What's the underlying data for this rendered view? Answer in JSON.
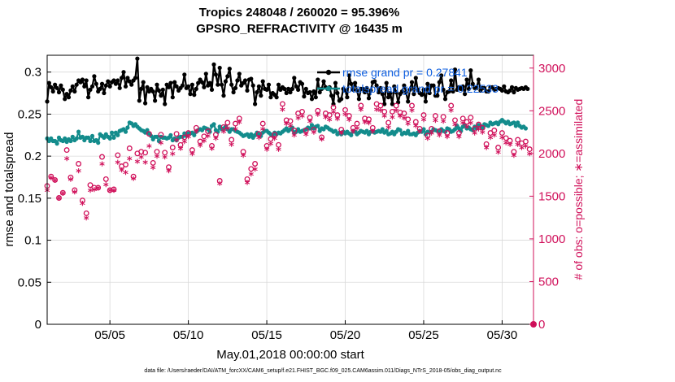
{
  "chart_data": {
    "type": "line",
    "title": "Tropics 248048 / 260020 = 95.396%",
    "subtitle": "GPSRO_REFRACTIVITY @ 16435 m",
    "xlabel": "May.01,2018 00:00:00 start",
    "ylabel": "rmse and totalspread",
    "ylabel_right": "# of obs: o=possible; ∗=assimilated",
    "footer": "data file: /Users/raeder/DAI/ATM_forcXX/CAM6_setup/f.e21.FHIST_BGC.f09_025.CAM6assim.011/Diags_NTrS_2018-05/obs_diag_output.nc",
    "x_ticks": [
      "05/05",
      "05/10",
      "05/15",
      "05/20",
      "05/25",
      "05/30"
    ],
    "x_tick_days": [
      5,
      10,
      15,
      20,
      25,
      30
    ],
    "xlim": [
      1,
      32
    ],
    "ylim": [
      0,
      0.32
    ],
    "y_ticks": [
      "0",
      "0.05",
      "0.1",
      "0.15",
      "0.2",
      "0.25",
      "0.3"
    ],
    "y_tick_values": [
      0,
      0.05,
      0.1,
      0.15,
      0.2,
      0.25,
      0.3
    ],
    "ylim_right": [
      0,
      3150
    ],
    "y_ticks_right": [
      "0",
      "500",
      "1000",
      "1500",
      "2000",
      "2500",
      "3000"
    ],
    "y_tick_values_right": [
      0,
      500,
      1000,
      1500,
      2000,
      2500,
      3000
    ],
    "grid": true,
    "legend": {
      "placement": "top-right",
      "entries": [
        "rmse grand pr = 0.27841",
        "totalspread grand pr = 0.22533"
      ]
    },
    "colors": {
      "rmse": "#000000",
      "spread": "#138c8c",
      "obs": "#d0105a",
      "legend_text": "#1060e0"
    },
    "series": [
      {
        "name": "rmse grand pr = 0.27841",
        "y": [
          0.265,
          0.287,
          0.282,
          0.277,
          0.285,
          0.281,
          0.276,
          0.284,
          0.279,
          0.268,
          0.274,
          0.27,
          0.278,
          0.283,
          0.277,
          0.285,
          0.29,
          0.288,
          0.291,
          0.283,
          0.29,
          0.27,
          0.279,
          0.283,
          0.295,
          0.286,
          0.277,
          0.28,
          0.286,
          0.275,
          0.284,
          0.289,
          0.283,
          0.288,
          0.29,
          0.286,
          0.29,
          0.281,
          0.293,
          0.3,
          0.283,
          0.293,
          0.289,
          0.285,
          0.29,
          0.293,
          0.316,
          0.266,
          0.28,
          0.288,
          0.263,
          0.282,
          0.277,
          0.28,
          0.277,
          0.266,
          0.285,
          0.278,
          0.272,
          0.279,
          0.262,
          0.285,
          0.282,
          0.287,
          0.27,
          0.288,
          0.283,
          0.278,
          0.281,
          0.284,
          0.297,
          0.281,
          0.283,
          0.274,
          0.285,
          0.273,
          0.28,
          0.287,
          0.291,
          0.288,
          0.282,
          0.298,
          0.284,
          0.287,
          0.279,
          0.309,
          0.297,
          0.285,
          0.305,
          0.285,
          0.272,
          0.289,
          0.295,
          0.304,
          0.285,
          0.276,
          0.281,
          0.29,
          0.298,
          0.284,
          0.287,
          0.29,
          0.278,
          0.291,
          0.292,
          0.284,
          0.262,
          0.276,
          0.283,
          0.272,
          0.289,
          0.28,
          0.279,
          0.285,
          0.27,
          0.275,
          0.273,
          0.27,
          0.285,
          0.279,
          0.282,
          0.28,
          0.275,
          0.28,
          0.276,
          0.28,
          0.293,
          0.283,
          0.279,
          0.288,
          0.286,
          0.271,
          0.28,
          0.275,
          0.276,
          0.268,
          0.277,
          0.27,
          0.291,
          0.276,
          0.28,
          0.289,
          0.282,
          0.28,
          0.282,
          0.272,
          0.262,
          0.287,
          0.275,
          0.266,
          0.268,
          0.28,
          0.278,
          0.27,
          0.296,
          0.286,
          0.279,
          0.287,
          0.278,
          0.268,
          0.28,
          0.28,
          0.276,
          0.281,
          0.269,
          0.278,
          0.288,
          0.289,
          0.284,
          0.276,
          0.281,
          0.274,
          0.262,
          0.287,
          0.27,
          0.275,
          0.262,
          0.283,
          0.276,
          0.264,
          0.274,
          0.277,
          0.284,
          0.276,
          0.265,
          0.279,
          0.288,
          0.274,
          0.293,
          0.279,
          0.275,
          0.273,
          0.279,
          0.265,
          0.286,
          0.275,
          0.284,
          0.284,
          0.272,
          0.272,
          0.288,
          0.296,
          0.279,
          0.268,
          0.276,
          0.277,
          0.29,
          0.277,
          0.303,
          0.279,
          0.282,
          0.28,
          0.283,
          0.274,
          0.291,
          0.28,
          0.302,
          0.286,
          0.281,
          0.281,
          0.291,
          0.278,
          0.281,
          0.281,
          0.277,
          0.277,
          0.282,
          0.282,
          0.279,
          0.28,
          0.281,
          0.28,
          0.278,
          0.283,
          0.277,
          0.276,
          0.278,
          0.282,
          0.276,
          0.281,
          0.279,
          0.28,
          0.281,
          0.28,
          0.282,
          0.28
        ]
      },
      {
        "name": "totalspread grand pr = 0.22533",
        "y": [
          0.221,
          0.218,
          0.221,
          0.218,
          0.218,
          0.215,
          0.222,
          0.219,
          0.218,
          0.221,
          0.217,
          0.22,
          0.218,
          0.223,
          0.219,
          0.221,
          0.229,
          0.222,
          0.223,
          0.219,
          0.222,
          0.222,
          0.218,
          0.224,
          0.218,
          0.219,
          0.216,
          0.226,
          0.224,
          0.222,
          0.226,
          0.223,
          0.221,
          0.228,
          0.222,
          0.228,
          0.225,
          0.23,
          0.231,
          0.232,
          0.229,
          0.234,
          0.24,
          0.239,
          0.236,
          0.238,
          0.235,
          0.233,
          0.231,
          0.23,
          0.228,
          0.231,
          0.227,
          0.224,
          0.22,
          0.223,
          0.223,
          0.218,
          0.223,
          0.222,
          0.222,
          0.221,
          0.222,
          0.225,
          0.219,
          0.221,
          0.219,
          0.222,
          0.223,
          0.223,
          0.227,
          0.224,
          0.227,
          0.227,
          0.228,
          0.225,
          0.229,
          0.231,
          0.232,
          0.231,
          0.234,
          0.233,
          0.232,
          0.229,
          0.236,
          0.238,
          0.231,
          0.229,
          0.235,
          0.232,
          0.233,
          0.235,
          0.232,
          0.229,
          0.232,
          0.232,
          0.23,
          0.229,
          0.228,
          0.226,
          0.224,
          0.225,
          0.226,
          0.223,
          0.226,
          0.222,
          0.225,
          0.228,
          0.226,
          0.224,
          0.228,
          0.23,
          0.23,
          0.228,
          0.226,
          0.225,
          0.228,
          0.226,
          0.228,
          0.227,
          0.229,
          0.231,
          0.233,
          0.23,
          0.232,
          0.234,
          0.228,
          0.229,
          0.232,
          0.229,
          0.23,
          0.231,
          0.232,
          0.234,
          0.233,
          0.237,
          0.233,
          0.235,
          0.236,
          0.23,
          0.233,
          0.232,
          0.235,
          0.234,
          0.232,
          0.231,
          0.229,
          0.23,
          0.226,
          0.228,
          0.226,
          0.229,
          0.227,
          0.229,
          0.227,
          0.225,
          0.23,
          0.229,
          0.226,
          0.228,
          0.23,
          0.229,
          0.228,
          0.23,
          0.226,
          0.229,
          0.23,
          0.228,
          0.229,
          0.23,
          0.229,
          0.232,
          0.228,
          0.23,
          0.226,
          0.227,
          0.229,
          0.226,
          0.229,
          0.232,
          0.231,
          0.226,
          0.228,
          0.227,
          0.23,
          0.226,
          0.226,
          0.227,
          0.225,
          0.228,
          0.23,
          0.229,
          0.232,
          0.226,
          0.229,
          0.228,
          0.229,
          0.232,
          0.231,
          0.23,
          0.229,
          0.232,
          0.23,
          0.229,
          0.233,
          0.232,
          0.229,
          0.23,
          0.232,
          0.236,
          0.233,
          0.23,
          0.235,
          0.237,
          0.233,
          0.234,
          0.232,
          0.231,
          0.235,
          0.233,
          0.237,
          0.236,
          0.234,
          0.238,
          0.237,
          0.236,
          0.24,
          0.238,
          0.239,
          0.24,
          0.238,
          0.241,
          0.243,
          0.241,
          0.239,
          0.241,
          0.238,
          0.239,
          0.24,
          0.236,
          0.24,
          0.236,
          0.234,
          0.235,
          0.233
        ]
      },
      {
        "name": "possible",
        "y": [
          1620,
          1510,
          1730,
          1840,
          1690,
          1730,
          1480,
          1600,
          1540,
          2010,
          2040,
          1870,
          1720,
          1680,
          1570,
          1790,
          1880,
          1440,
          1450,
          1410,
          1300,
          1860,
          1630,
          1750,
          1600,
          1700,
          1600,
          1650,
          1960,
          1780,
          1700,
          1750,
          1570,
          1850,
          1580,
          1900,
          1980,
          1700,
          1850,
          1750,
          1870,
          2130,
          2060,
          1900,
          1730,
          1760,
          2000,
          1940,
          2020,
          2140,
          2010,
          1780,
          2230,
          2000,
          1890,
          1870,
          2020,
          2130,
          2220,
          1950,
          2010,
          1870,
          1840,
          1970,
          2070,
          2140,
          2230,
          2000,
          2100,
          2150,
          2190,
          2280,
          2240,
          2090,
          2040,
          2110,
          2300,
          2190,
          2140,
          2240,
          2200,
          2010,
          2260,
          2310,
          2090,
          2300,
          2220,
          1600,
          1680,
          2270,
          2310,
          2170,
          2360,
          2180,
          2160,
          2280,
          2350,
          2250,
          2410,
          2430,
          2020,
          2340,
          1700,
          1800,
          1820,
          1870,
          1880,
          1850,
          2230,
          2380,
          2350,
          2260,
          2090,
          2350,
          2170,
          2450,
          2220,
          2520,
          2100,
          2560,
          2580,
          2700,
          2390,
          2480,
          2380,
          2230,
          2270,
          2520,
          2470,
          2450,
          2490,
          2390,
          2270,
          2400,
          2420,
          2300,
          2280,
          2380,
          2500,
          2190,
          2190,
          2200,
          2470,
          2300,
          2450,
          2560,
          2540,
          2410,
          2450,
          2360,
          2280,
          2380,
          2510,
          2490,
          2440,
          2380,
          2300,
          2340,
          2350,
          2450,
          2560,
          2460,
          2410,
          2360,
          2400,
          2280,
          2300,
          2380,
          2580,
          2440,
          2560,
          2480,
          2490,
          2400,
          2360,
          2540,
          2490,
          2340,
          2560,
          2640,
          2480,
          2290,
          2470,
          2500,
          2400,
          2330,
          2560,
          2520,
          2370,
          1810,
          2290,
          2530,
          2450,
          2350,
          2210,
          2310,
          2290,
          2360,
          2440,
          2400,
          2260,
          2210,
          2430,
          2590,
          2240,
          2270,
          2560,
          2400,
          2390,
          2200,
          2240,
          2270,
          2410,
          2280,
          2370,
          2410,
          2420,
          2120,
          2290,
          2300,
          2340,
          2130,
          2300,
          2280,
          2110,
          2350,
          2240,
          2180,
          2270,
          2260,
          2070,
          2140,
          2240,
          2290,
          2180,
          2230,
          2150,
          2050,
          2020,
          2080,
          2160,
          2200,
          2120,
          2050,
          2140,
          2220,
          2050,
          2080
        ]
      },
      {
        "name": "assimilated",
        "y": [
          1550,
          1450,
          1700,
          1780,
          1670,
          1650,
          1460,
          1570,
          1520,
          1900,
          1920,
          1770,
          1680,
          1630,
          1530,
          1720,
          1780,
          1410,
          1400,
          1380,
          1230,
          1740,
          1550,
          1600,
          1560,
          1620,
          1580,
          1590,
          1860,
          1710,
          1620,
          1700,
          1550,
          1820,
          1550,
          1820,
          1880,
          1650,
          1790,
          1700,
          1760,
          1990,
          1920,
          1850,
          1690,
          1720,
          1890,
          1880,
          1940,
          2080,
          1880,
          1730,
          2070,
          1920,
          1820,
          1800,
          1950,
          2050,
          2110,
          1900,
          1940,
          1830,
          1780,
          1900,
          1980,
          2060,
          2140,
          1930,
          2040,
          2080,
          2120,
          2190,
          2180,
          2020,
          1980,
          2050,
          2240,
          2130,
          2080,
          2180,
          2130,
          1960,
          2190,
          2240,
          2040,
          2240,
          2160,
          1550,
          1630,
          2200,
          2240,
          2110,
          2280,
          2110,
          2090,
          2200,
          2270,
          2180,
          2350,
          2370,
          1960,
          2280,
          1640,
          1750,
          1740,
          1790,
          1800,
          1790,
          2170,
          2300,
          2270,
          2190,
          2030,
          2290,
          2100,
          2380,
          2160,
          2430,
          2030,
          2460,
          2500,
          2630,
          2330,
          2420,
          2310,
          2170,
          2200,
          2440,
          2400,
          2390,
          2420,
          2330,
          2210,
          2350,
          2360,
          2250,
          2230,
          2330,
          2440,
          2140,
          2150,
          2140,
          2410,
          2240,
          2380,
          2490,
          2470,
          2340,
          2390,
          2300,
          2220,
          2310,
          2440,
          2410,
          2380,
          2330,
          2240,
          2280,
          2280,
          2380,
          2500,
          2400,
          2350,
          2290,
          2340,
          2220,
          2240,
          2310,
          2500,
          2380,
          2490,
          2410,
          2420,
          2330,
          2290,
          2470,
          2410,
          2280,
          2490,
          2550,
          2420,
          2230,
          2400,
          2430,
          2330,
          2280,
          2490,
          2440,
          2310,
          1730,
          2240,
          2460,
          2380,
          2290,
          2160,
          2250,
          2220,
          2290,
          2370,
          2340,
          2200,
          2150,
          2360,
          2510,
          2180,
          2210,
          2490,
          2330,
          2320,
          2140,
          2180,
          2200,
          2340,
          2220,
          2300,
          2340,
          2340,
          2060,
          2220,
          2240,
          2270,
          2070,
          2230,
          2200,
          2050,
          2280,
          2170,
          2120,
          2200,
          2180,
          2000,
          2070,
          2170,
          2220,
          2110,
          2160,
          2090,
          1990,
          1960,
          2020,
          2090,
          2130,
          2050,
          1980,
          2070,
          2150,
          1980,
          2010
        ]
      }
    ]
  }
}
